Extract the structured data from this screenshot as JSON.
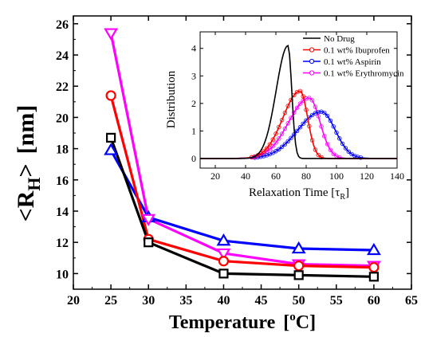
{
  "chart_data": [
    {
      "type": "line",
      "title": "",
      "xlabel": "Temperature",
      "xlabel_unit_prefix": "[",
      "xlabel_unit_sup": "o",
      "xlabel_unit_rest": "C]",
      "ylabel_main": "<R",
      "ylabel_sub": "H",
      "ylabel_tail": ">",
      "ylabel_unit": "[nm]",
      "xlim": [
        20,
        65
      ],
      "ylim": [
        9,
        26.5
      ],
      "xticks": [
        20,
        25,
        30,
        35,
        40,
        45,
        50,
        55,
        60,
        65
      ],
      "yticks": [
        10,
        12,
        14,
        16,
        18,
        20,
        22,
        24,
        26
      ],
      "x": [
        25,
        30,
        40,
        50,
        60
      ],
      "series": [
        {
          "marker": "square",
          "color": "#000000",
          "values": [
            18.7,
            12.0,
            10.0,
            9.9,
            9.8
          ]
        },
        {
          "marker": "circle",
          "color": "#ff0000",
          "values": [
            21.4,
            12.2,
            10.8,
            10.5,
            10.4
          ]
        },
        {
          "marker": "triangle-up",
          "color": "#0000ff",
          "values": [
            17.9,
            13.6,
            12.1,
            11.6,
            11.5
          ]
        },
        {
          "marker": "triangle-down",
          "color": "#ff00ff",
          "values": [
            25.4,
            13.5,
            11.3,
            10.6,
            10.5
          ]
        }
      ],
      "grid": false
    },
    {
      "type": "line",
      "title": "",
      "xlabel_main": "Relaxation Time [τ",
      "xlabel_sub": "R",
      "xlabel_tail": "]",
      "ylabel": "Distribution",
      "xlim": [
        10,
        140
      ],
      "ylim": [
        -0.35,
        4.6
      ],
      "xticks": [
        20,
        40,
        60,
        80,
        100,
        120,
        140
      ],
      "yticks": [
        0,
        1,
        2,
        3,
        4
      ],
      "legend_position": "top-right",
      "series": [
        {
          "name": "No Drug",
          "color": "#000000",
          "marker": "none",
          "peak_x": 68,
          "peak_y": 4.1
        },
        {
          "name": "0.1 wt% Ibuprofen",
          "color": "#ff0000",
          "marker": "circle",
          "peak_x": 76,
          "peak_y": 2.45
        },
        {
          "name": "0.1 wt% Aspirin",
          "color": "#0000ff",
          "marker": "circle",
          "peak_x": 90,
          "peak_y": 1.7
        },
        {
          "name": "0.1 wt% Erythromycin",
          "color": "#ff00ff",
          "marker": "circle",
          "peak_x": 82,
          "peak_y": 2.2
        }
      ],
      "grid": false
    }
  ]
}
